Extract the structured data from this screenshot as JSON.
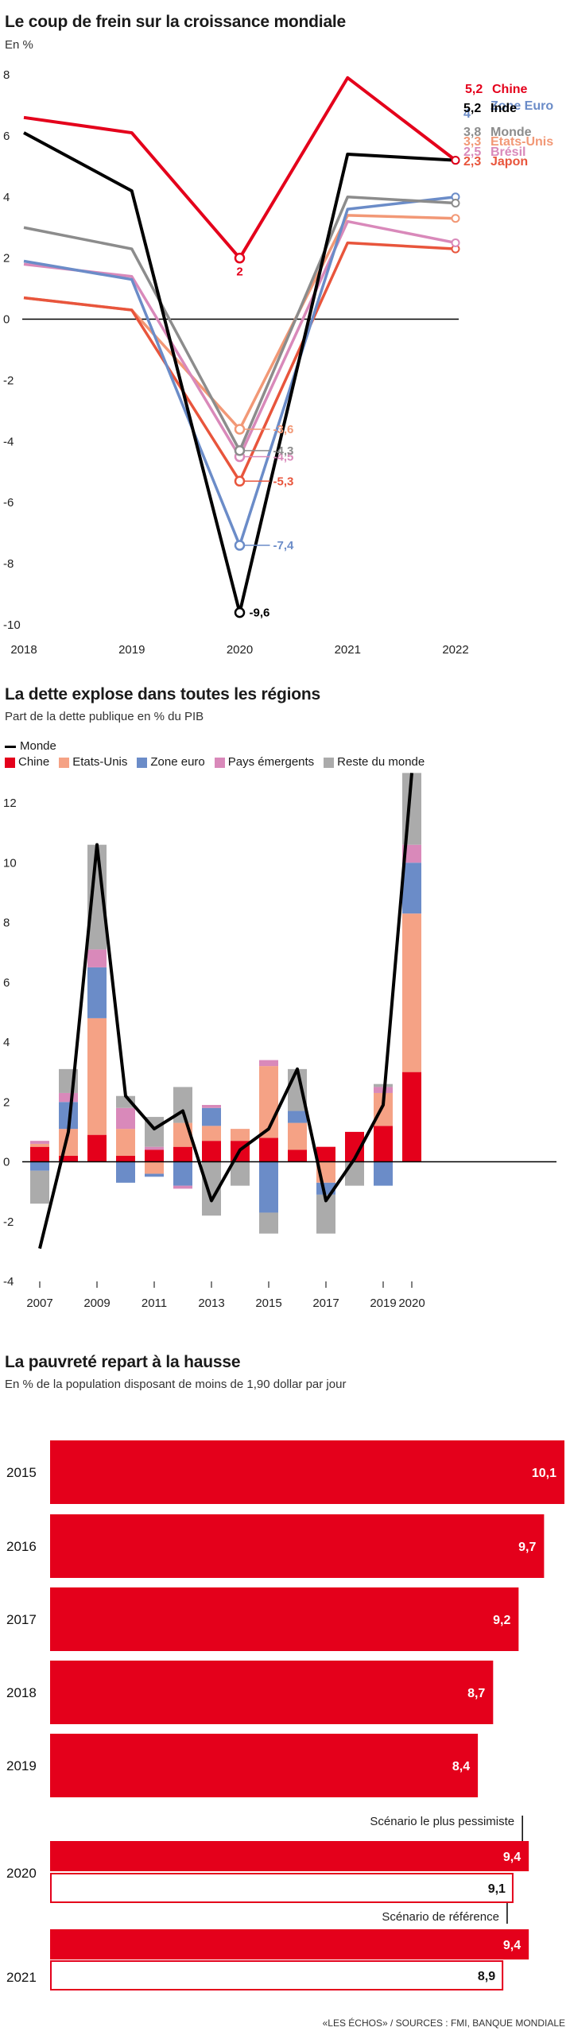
{
  "chart_data": [
    {
      "type": "line",
      "title": "Le coup de frein sur la croissance mondiale",
      "subtitle": "En %",
      "x": [
        "2018",
        "2019",
        "2020",
        "2021",
        "2022"
      ],
      "ylim": [
        -10,
        8
      ],
      "yticks": [
        "8",
        "6",
        "4",
        "2",
        "0",
        "-2",
        "-4",
        "-6",
        "-8",
        "-10"
      ],
      "grid": false,
      "series": [
        {
          "name": "Chine",
          "color": "#e4001b",
          "values": [
            6.6,
            6.1,
            2.0,
            7.9,
            5.2
          ],
          "end_label": "5,2",
          "point_2020_label": "2"
        },
        {
          "name": "Inde",
          "color": "#000000",
          "values": [
            6.1,
            4.2,
            -9.6,
            5.4,
            5.2
          ],
          "end_label": "5,2",
          "point_2020_label": "-9,6"
        },
        {
          "name": "Zone Euro",
          "color": "#6b8cc8",
          "values": [
            1.9,
            1.3,
            -7.4,
            3.6,
            4.0
          ],
          "end_label": "4",
          "point_2020_label": "-7,4"
        },
        {
          "name": "Monde",
          "color": "#8c8c8c",
          "values": [
            3.0,
            2.3,
            -4.3,
            4.0,
            3.8
          ],
          "end_label": "3,8",
          "point_2020_label": "-4,3"
        },
        {
          "name": "Etats-Unis",
          "color": "#f29876",
          "values": [
            0.7,
            0.3,
            -3.6,
            3.4,
            3.3
          ],
          "end_label": "3,3",
          "point_2020_label": "-3,6"
        },
        {
          "name": "Brésil",
          "color": "#d989ba",
          "values": [
            1.8,
            1.4,
            -4.5,
            3.2,
            2.5
          ],
          "end_label": "2,5",
          "point_2020_label": "-4,5"
        },
        {
          "name": "Japon",
          "color": "#e8553c",
          "values": [
            0.7,
            0.3,
            -5.3,
            2.5,
            2.3
          ],
          "end_label": "2,3",
          "point_2020_label": "-5,3"
        }
      ]
    },
    {
      "type": "bar",
      "stacked": true,
      "title": "La dette explose dans toutes les régions",
      "subtitle": "Part de la dette publique en % du PIB",
      "x": [
        "2007",
        "2008",
        "2009",
        "2010",
        "2011",
        "2012",
        "2013",
        "2014",
        "2015",
        "2016",
        "2017",
        "2018",
        "2019",
        "2020"
      ],
      "xtick_labels": [
        "2007",
        "2009",
        "2011",
        "2013",
        "2015",
        "2017",
        "2019",
        "2020"
      ],
      "xtick_positions": [
        "2007",
        "2009",
        "2011",
        "2013",
        "2015",
        "2017",
        "2019",
        "2020"
      ],
      "ylim": [
        -4,
        12
      ],
      "yticks": [
        "12",
        "10",
        "8",
        "6",
        "4",
        "2",
        "0",
        "-2",
        "-4"
      ],
      "legend_position": "top-left",
      "line_series": {
        "name": "Monde",
        "color": "#000000",
        "values": [
          -2.9,
          1.0,
          10.6,
          2.2,
          1.1,
          1.7,
          -1.3,
          0.4,
          1.1,
          3.1,
          -1.3,
          0.1,
          1.9,
          13.0
        ]
      },
      "series": [
        {
          "name": "Chine",
          "color": "#e4001b",
          "values": [
            0.5,
            0.2,
            0.9,
            0.2,
            0.4,
            0.5,
            0.7,
            0.7,
            0.8,
            0.4,
            0.5,
            1.0,
            1.2,
            3.0
          ]
        },
        {
          "name": "Etats-Unis",
          "color": "#f5a285",
          "values": [
            0.1,
            0.9,
            3.9,
            0.9,
            -0.4,
            0.8,
            0.5,
            0.4,
            2.4,
            0.9,
            -0.7,
            0.0,
            1.1,
            5.3
          ]
        },
        {
          "name": "Zone euro",
          "color": "#6b8cc8",
          "values": [
            -0.3,
            0.9,
            1.7,
            -0.7,
            -0.1,
            -0.8,
            0.6,
            0.0,
            -1.7,
            0.4,
            -0.4,
            0.0,
            -0.8,
            1.7
          ]
        },
        {
          "name": "Pays émergents",
          "color": "#d989ba",
          "values": [
            0.1,
            0.3,
            0.6,
            0.7,
            0.1,
            -0.1,
            0.1,
            0.0,
            0.2,
            0.0,
            0.0,
            0.0,
            0.2,
            0.6
          ]
        },
        {
          "name": "Reste du monde",
          "color": "#ababab",
          "values": [
            -1.1,
            0.8,
            3.5,
            0.4,
            1.0,
            1.2,
            -1.8,
            -0.8,
            -0.7,
            1.4,
            -1.3,
            -0.8,
            0.1,
            2.4
          ]
        }
      ]
    },
    {
      "type": "bar",
      "orientation": "horizontal",
      "title": "La pauvreté repart à la hausse",
      "subtitle": "En % de la population disposant de moins de 1,90 dollar par jour",
      "xlim": [
        0,
        10.1
      ],
      "color": "#e4001b",
      "rows": [
        {
          "category": "2015",
          "value": 10.1,
          "label": "10,1",
          "style": "filled"
        },
        {
          "category": "2016",
          "value": 9.7,
          "label": "9,7",
          "style": "filled"
        },
        {
          "category": "2017",
          "value": 9.2,
          "label": "9,2",
          "style": "filled"
        },
        {
          "category": "2018",
          "value": 8.7,
          "label": "8,7",
          "style": "filled"
        },
        {
          "category": "2019",
          "value": 8.4,
          "label": "8,4",
          "style": "filled"
        },
        {
          "category": "2020",
          "value": 9.4,
          "label": "9,4",
          "style": "filled",
          "annotation": "Scénario le plus pessimiste"
        },
        {
          "category": "",
          "value": 9.1,
          "label": "9,1",
          "style": "outline",
          "annotation": "Scénario de référence"
        },
        {
          "category": "2021",
          "value": 9.4,
          "label": "9,4",
          "style": "filled"
        },
        {
          "category": "",
          "value": 8.9,
          "label": "8,9",
          "style": "outline"
        }
      ]
    }
  ],
  "credit": "«LES ÉCHOS» / SOURCES : FMI, BANQUE MONDIALE"
}
